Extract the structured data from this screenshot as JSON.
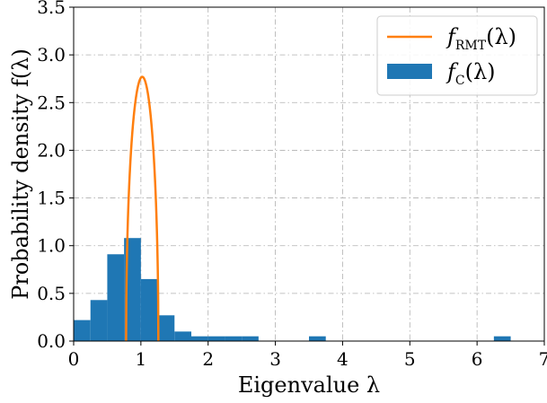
{
  "chart_data": {
    "type": "bar",
    "xlabel": "Eigenvalue λ",
    "ylabel": "Probability density f(λ)",
    "xlim": [
      0,
      7
    ],
    "ylim": [
      0,
      3.5
    ],
    "xticks": [
      "0",
      "1",
      "2",
      "3",
      "4",
      "5",
      "6",
      "7"
    ],
    "yticks": [
      "0.0",
      "0.5",
      "1.0",
      "1.5",
      "2.0",
      "2.5",
      "3.0",
      "3.5"
    ],
    "grid": true,
    "legend_position": "top-right",
    "histogram": {
      "name": "f_C(λ)",
      "color": "#1f77b4",
      "bin_edges": [
        0,
        0.25,
        0.5,
        0.75,
        1.0,
        1.25,
        1.5,
        1.75,
        2.0,
        2.25,
        2.5,
        2.75,
        3.5,
        3.75,
        6.25,
        6.5
      ],
      "bins": [
        {
          "x0": 0.0,
          "x1": 0.25,
          "y": 0.22
        },
        {
          "x0": 0.25,
          "x1": 0.5,
          "y": 0.43
        },
        {
          "x0": 0.5,
          "x1": 0.75,
          "y": 0.91
        },
        {
          "x0": 0.75,
          "x1": 1.0,
          "y": 1.08
        },
        {
          "x0": 1.0,
          "x1": 1.25,
          "y": 0.65
        },
        {
          "x0": 1.25,
          "x1": 1.5,
          "y": 0.27
        },
        {
          "x0": 1.5,
          "x1": 1.75,
          "y": 0.1
        },
        {
          "x0": 1.75,
          "x1": 2.0,
          "y": 0.05
        },
        {
          "x0": 2.0,
          "x1": 2.25,
          "y": 0.05
        },
        {
          "x0": 2.25,
          "x1": 2.5,
          "y": 0.05
        },
        {
          "x0": 2.5,
          "x1": 2.75,
          "y": 0.05
        },
        {
          "x0": 3.5,
          "x1": 3.75,
          "y": 0.05
        },
        {
          "x0": 6.25,
          "x1": 6.5,
          "y": 0.05
        }
      ]
    },
    "curve": {
      "name": "f_RMT(λ)",
      "color": "#ff7f0e",
      "lambda_min": 0.78,
      "lambda_max": 1.26,
      "peak": 2.77
    },
    "legend": [
      {
        "main": "f",
        "sub": "RMT",
        "arg": "(λ)",
        "kind": "line",
        "color": "#ff7f0e"
      },
      {
        "main": "f",
        "sub": "C",
        "arg": "(λ)",
        "kind": "patch",
        "color": "#1f77b4"
      }
    ]
  }
}
